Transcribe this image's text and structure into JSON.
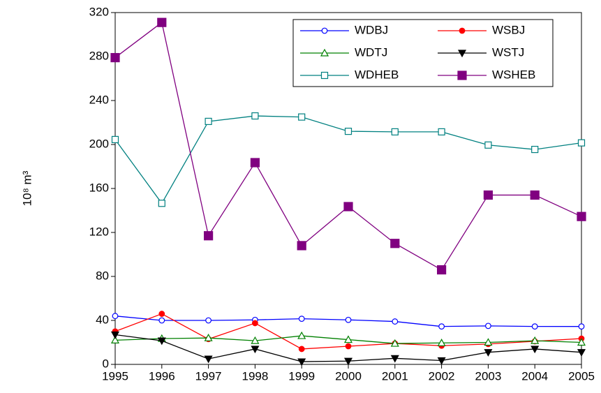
{
  "chart_data": {
    "type": "line",
    "y_label": "10⁸ m³",
    "x": [
      1995,
      1996,
      1997,
      1998,
      1999,
      2000,
      2001,
      2002,
      2003,
      2004,
      2005
    ],
    "xlim": [
      1995,
      2005
    ],
    "xticks": [
      1995,
      1996,
      1997,
      1998,
      1999,
      2000,
      2001,
      2002,
      2003,
      2004,
      2005
    ],
    "ylim": [
      0,
      320
    ],
    "yticks": [
      0,
      40,
      80,
      120,
      160,
      200,
      240,
      280,
      320
    ],
    "legend": "upper right",
    "series": [
      {
        "name": "WDBJ",
        "color": "#0000ff",
        "marker": "circle",
        "filled": false,
        "values": [
          44,
          40,
          40,
          40.5,
          41.5,
          40.5,
          39,
          34.5,
          35,
          34.5,
          34.5
        ]
      },
      {
        "name": "WSBJ",
        "color": "#ff0000",
        "marker": "circle",
        "filled": true,
        "values": [
          30,
          46,
          23,
          37.5,
          14,
          16.5,
          19,
          17,
          18.5,
          21,
          23.5
        ]
      },
      {
        "name": "WDTJ",
        "color": "#008000",
        "marker": "triangle",
        "filled": false,
        "values": [
          22,
          23.5,
          24,
          21.5,
          26,
          22.5,
          19,
          19.5,
          20,
          21.5,
          20
        ]
      },
      {
        "name": "WSTJ",
        "color": "#000000",
        "marker": "triangle-down",
        "filled": true,
        "values": [
          27,
          21.5,
          5,
          14,
          2.5,
          3,
          5.5,
          3.5,
          11,
          14,
          11
        ]
      },
      {
        "name": "WDHEB",
        "color": "#008080",
        "marker": "square",
        "filled": false,
        "values": [
          204.5,
          146.5,
          221,
          226,
          225,
          212,
          211.5,
          211.5,
          199.5,
          195.5,
          201.5
        ]
      },
      {
        "name": "WSHEB",
        "color": "#800080",
        "marker": "square-big",
        "filled": true,
        "values": [
          279,
          311,
          117,
          183.5,
          108,
          143.5,
          110,
          86,
          154,
          154,
          134.5
        ]
      }
    ]
  }
}
